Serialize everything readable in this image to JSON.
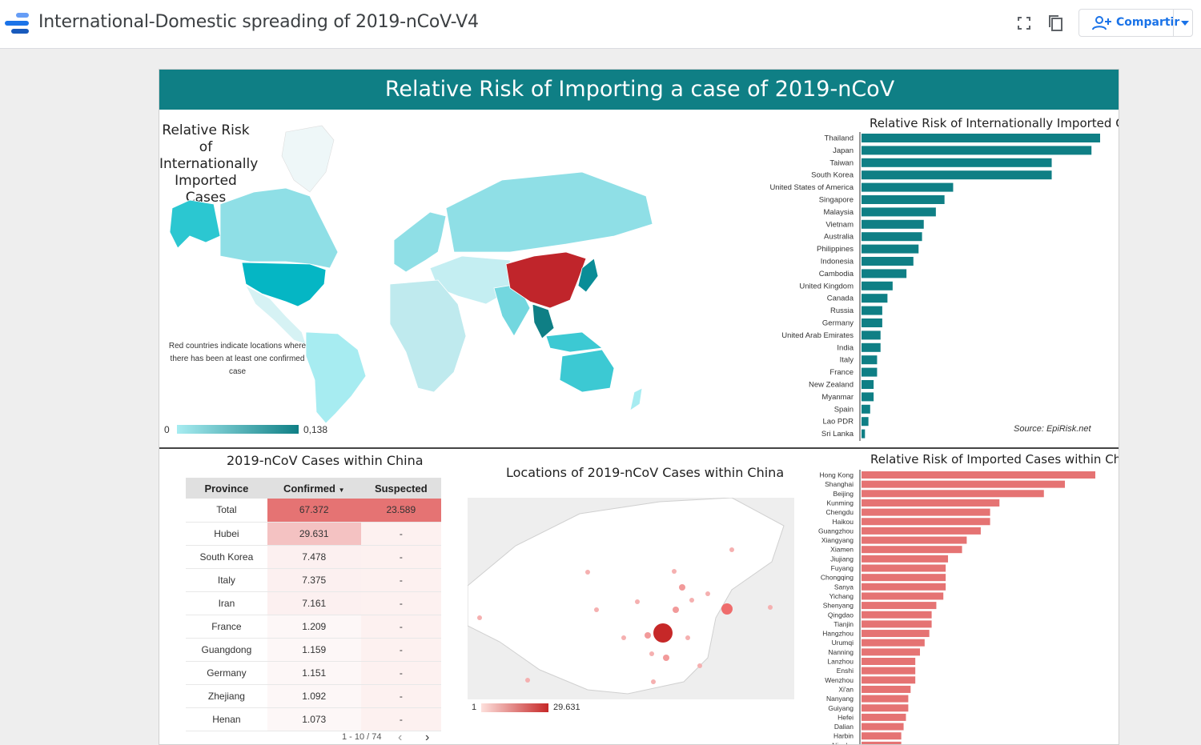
{
  "app": {
    "title": "International-Domestic spreading of 2019-nCoV-V4",
    "share_label": "Compartir"
  },
  "report": {
    "header": "Relative Risk of Importing a case of 2019-nCoV",
    "world_map": {
      "title": "Relative Risk of Internationally Imported Cases",
      "note": "Red countries indicate locations where there has been at least one confirmed case",
      "legend_min": "0",
      "legend_max": "0,138",
      "colors": {
        "low": "#a7ecf1",
        "high": "#0f7f85",
        "confirmed": "#c62828"
      }
    },
    "intl_chart": {
      "title": "Relative Risk of Internationally Imported Cases",
      "source": "Source: EpiRisk.net"
    },
    "table": {
      "title": "2019-nCoV Cases within China",
      "headers": [
        "Province",
        "Confirmed",
        "Suspected"
      ],
      "sort_indicator": "▼",
      "rows": [
        [
          "Total",
          "67.372",
          "23.589"
        ],
        [
          "Hubei",
          "29.631",
          "-"
        ],
        [
          "South Korea",
          "7.478",
          "-"
        ],
        [
          "Italy",
          "7.375",
          "-"
        ],
        [
          "Iran",
          "7.161",
          "-"
        ],
        [
          "France",
          "1.209",
          "-"
        ],
        [
          "Guangdong",
          "1.159",
          "-"
        ],
        [
          "Germany",
          "1.151",
          "-"
        ],
        [
          "Zhejiang",
          "1.092",
          "-"
        ],
        [
          "Henan",
          "1.073",
          "-"
        ]
      ],
      "pagination": "1 - 10 / 74"
    },
    "china_map": {
      "title": "Locations of 2019-nCoV Cases within China",
      "legend_min": "1",
      "legend_max": "29.631"
    },
    "domestic_chart": {
      "title": "Relative Risk of Imported Cases within China"
    }
  },
  "chart_data": [
    {
      "type": "bar",
      "orientation": "horizontal",
      "title": "Relative Risk of Internationally Imported Cases",
      "color": "#0f7f85",
      "categories": [
        "Thailand",
        "Japan",
        "Taiwan",
        "South Korea",
        "United States of America",
        "Singapore",
        "Malaysia",
        "Vietnam",
        "Australia",
        "Philippines",
        "Indonesia",
        "Cambodia",
        "United Kingdom",
        "Canada",
        "Russia",
        "Germany",
        "United Arab Emirates",
        "India",
        "Italy",
        "France",
        "New Zealand",
        "Myanmar",
        "Spain",
        "Lao PDR",
        "Sri Lanka"
      ],
      "values": [
        0.138,
        0.133,
        0.11,
        0.11,
        0.053,
        0.048,
        0.043,
        0.036,
        0.035,
        0.033,
        0.03,
        0.026,
        0.018,
        0.015,
        0.012,
        0.012,
        0.011,
        0.011,
        0.009,
        0.009,
        0.007,
        0.007,
        0.005,
        0.004,
        0.002
      ]
    },
    {
      "type": "bar",
      "orientation": "horizontal",
      "title": "Relative Risk of Imported Cases within China",
      "color": "#e57373",
      "categories": [
        "Hong Kong",
        "Shanghai",
        "Beijing",
        "Kunming",
        "Chengdu",
        "Haikou",
        "Guangzhou",
        "Xiangyang",
        "Xiamen",
        "Jiujiang",
        "Fuyang",
        "Chongqing",
        "Sanya",
        "Yichang",
        "Shenyang",
        "Qingdao",
        "Tianjin",
        "Hangzhou",
        "Urumqi",
        "Nanning",
        "Lanzhou",
        "Enshi",
        "Wenzhou",
        "Xi'an",
        "Nanyang",
        "Guiyang",
        "Hefei",
        "Dalian",
        "Harbin",
        "Ningbo"
      ],
      "values": [
        100,
        87,
        78,
        59,
        55,
        55,
        51,
        45,
        43,
        37,
        36,
        36,
        36,
        35,
        32,
        30,
        30,
        29,
        27,
        25,
        23,
        23,
        23,
        21,
        20,
        20,
        19,
        18,
        17,
        17
      ]
    }
  ]
}
